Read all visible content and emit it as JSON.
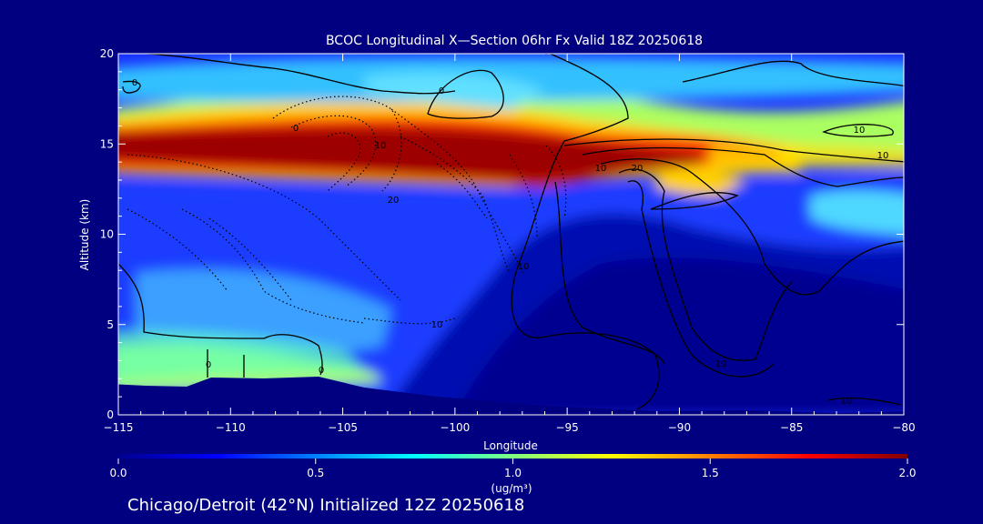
{
  "chart_data": {
    "type": "heatmap",
    "title": "BCOC Longitudinal X—Section 06hr  Fx Valid 18Z 20250618",
    "xlabel": "Longitude",
    "ylabel": "Altitude (km)",
    "xlim": [
      -115,
      -80
    ],
    "ylim": [
      0,
      20
    ],
    "x_ticks": [
      -115,
      -110,
      -105,
      -100,
      -95,
      -90,
      -85,
      -80
    ],
    "x_tick_labels": [
      "−115",
      "−110",
      "−105",
      "−100",
      "−95",
      "−90",
      "−85",
      "−80"
    ],
    "y_ticks": [
      0,
      5,
      10,
      15,
      20
    ],
    "y_tick_labels": [
      "0",
      "5",
      "10",
      "15",
      "20"
    ],
    "colorbar": {
      "range": [
        0.0,
        2.0
      ],
      "ticks": [
        0.0,
        0.5,
        1.0,
        1.5,
        2.0
      ],
      "tick_labels": [
        "0.0",
        "0.5",
        "1.0",
        "1.5",
        "2.0"
      ],
      "unit_label": "(ug/m³)",
      "colors": [
        "#000090",
        "#0000ff",
        "#0080ff",
        "#00ffff",
        "#80ff80",
        "#ffff00",
        "#ff8000",
        "#ff0000",
        "#800000"
      ]
    },
    "contour_labels": [
      "0",
      "0",
      "0",
      "0",
      "0",
      "0",
      "10",
      "10",
      "10",
      "10",
      "20",
      "10",
      "10",
      "20",
      "10",
      "10"
    ],
    "footer": "Chicago/Detroit (42°N) Initialized 12Z 20250618"
  }
}
